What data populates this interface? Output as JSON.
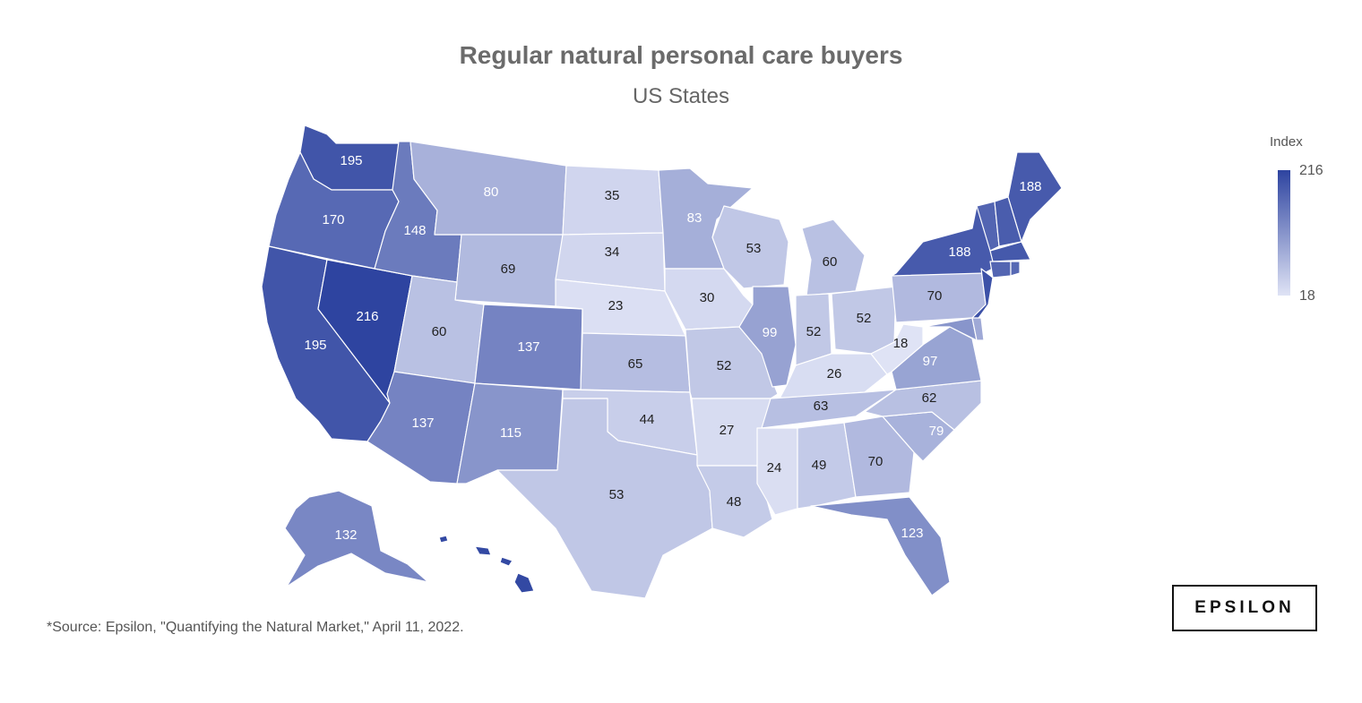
{
  "chart": {
    "title": "Regular natural personal care buyers",
    "subtitle": "US States"
  },
  "legend": {
    "title": "Index",
    "max_label": "216",
    "min_label": "18",
    "color_max": "#2e44a0",
    "color_min": "#dfe3f5"
  },
  "source": "*Source: Epsilon, \"Quantifying the Natural Market,\" April 11, 2022.",
  "logo": {
    "text": "EPSILON"
  },
  "chart_data": {
    "type": "choropleth",
    "value_range": [
      18,
      216
    ],
    "states": [
      {
        "id": "WA",
        "value": 195,
        "label": "195"
      },
      {
        "id": "OR",
        "value": 170,
        "label": "170"
      },
      {
        "id": "CA",
        "value": 195,
        "label": "195"
      },
      {
        "id": "NV",
        "value": 216,
        "label": "216"
      },
      {
        "id": "ID",
        "value": 148,
        "label": "148"
      },
      {
        "id": "MT",
        "value": 80,
        "label": "80"
      },
      {
        "id": "WY",
        "value": 69,
        "label": "69"
      },
      {
        "id": "UT",
        "value": 60,
        "label": "60"
      },
      {
        "id": "AZ",
        "value": 137,
        "label": "137"
      },
      {
        "id": "CO",
        "value": 137,
        "label": "137"
      },
      {
        "id": "NM",
        "value": 115,
        "label": "115"
      },
      {
        "id": "ND",
        "value": 35,
        "label": "35"
      },
      {
        "id": "SD",
        "value": 34,
        "label": "34"
      },
      {
        "id": "NE",
        "value": 23,
        "label": "23"
      },
      {
        "id": "KS",
        "value": 65,
        "label": "65"
      },
      {
        "id": "OK",
        "value": 44,
        "label": "44"
      },
      {
        "id": "TX",
        "value": 53,
        "label": "53"
      },
      {
        "id": "MN",
        "value": 83,
        "label": "83"
      },
      {
        "id": "IA",
        "value": 30,
        "label": "30"
      },
      {
        "id": "MO",
        "value": 52,
        "label": "52"
      },
      {
        "id": "AR",
        "value": 27,
        "label": "27"
      },
      {
        "id": "LA",
        "value": 48,
        "label": "48"
      },
      {
        "id": "WI",
        "value": 53,
        "label": "53"
      },
      {
        "id": "IL",
        "value": 99,
        "label": "99"
      },
      {
        "id": "MI",
        "value": 60,
        "label": "60"
      },
      {
        "id": "IN",
        "value": 52,
        "label": "52"
      },
      {
        "id": "OH",
        "value": 52,
        "label": "52"
      },
      {
        "id": "KY",
        "value": 26,
        "label": "26"
      },
      {
        "id": "TN",
        "value": 63,
        "label": "63"
      },
      {
        "id": "MS",
        "value": 24,
        "label": "24"
      },
      {
        "id": "AL",
        "value": 49,
        "label": "49"
      },
      {
        "id": "GA",
        "value": 70,
        "label": "70"
      },
      {
        "id": "FL",
        "value": 123,
        "label": "123"
      },
      {
        "id": "SC",
        "value": 79,
        "label": "79"
      },
      {
        "id": "NC",
        "value": 62,
        "label": "62"
      },
      {
        "id": "VA",
        "value": 97,
        "label": "97"
      },
      {
        "id": "WV",
        "value": 18,
        "label": "18"
      },
      {
        "id": "PA",
        "value": 70,
        "label": "70"
      },
      {
        "id": "NY",
        "value": 188,
        "label": "188"
      },
      {
        "id": "ME",
        "value": 188,
        "label": "188"
      },
      {
        "id": "AK",
        "value": 132,
        "label": "132"
      },
      {
        "id": "NJ",
        "value": 200,
        "label": ""
      },
      {
        "id": "VT",
        "value": 175,
        "label": ""
      },
      {
        "id": "NH",
        "value": 185,
        "label": ""
      },
      {
        "id": "MA",
        "value": 190,
        "label": ""
      },
      {
        "id": "CT",
        "value": 175,
        "label": ""
      },
      {
        "id": "RI",
        "value": 170,
        "label": ""
      },
      {
        "id": "MD",
        "value": 115,
        "label": ""
      },
      {
        "id": "DE",
        "value": 90,
        "label": ""
      },
      {
        "id": "HI",
        "value": 210,
        "label": ""
      }
    ]
  }
}
